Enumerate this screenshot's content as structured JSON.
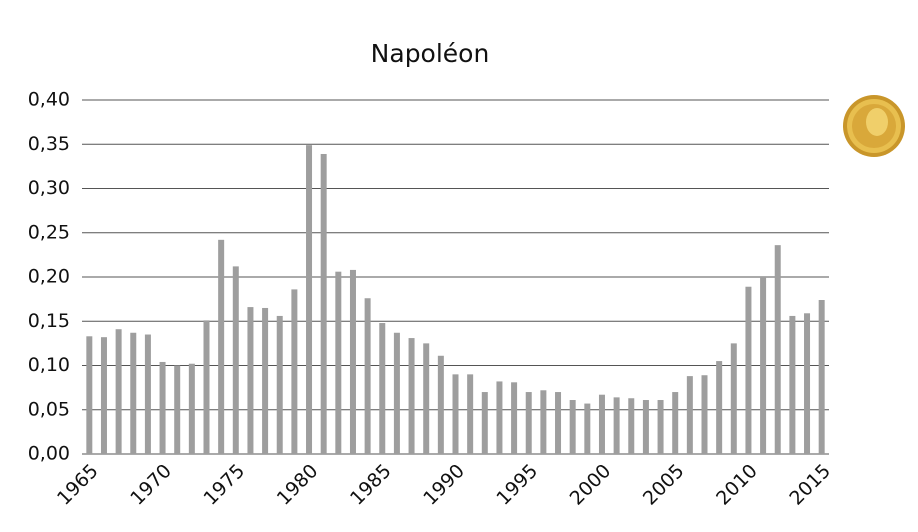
{
  "chart_data": {
    "type": "bar",
    "title": "Napoléon",
    "categories": [
      "1965",
      null,
      null,
      null,
      null,
      "1970",
      null,
      null,
      null,
      null,
      "1975",
      null,
      null,
      null,
      null,
      "1980",
      null,
      null,
      null,
      null,
      "1985",
      null,
      null,
      null,
      null,
      "1990",
      null,
      null,
      null,
      null,
      "1995",
      null,
      null,
      null,
      null,
      "2000",
      null,
      null,
      null,
      null,
      "2005",
      null,
      null,
      null,
      null,
      "2010",
      null,
      null,
      null,
      null,
      "2015"
    ],
    "values": [
      0.133,
      0.132,
      0.141,
      0.137,
      0.135,
      0.104,
      0.1,
      0.102,
      0.151,
      0.242,
      0.212,
      0.166,
      0.165,
      0.156,
      0.186,
      0.349,
      0.339,
      0.206,
      0.208,
      0.176,
      0.148,
      0.137,
      0.131,
      0.125,
      0.111,
      0.09,
      0.09,
      0.07,
      0.082,
      0.081,
      0.07,
      0.072,
      0.07,
      0.061,
      0.057,
      0.067,
      0.064,
      0.063,
      0.061,
      0.061,
      0.07,
      0.088,
      0.089,
      0.105,
      0.125,
      0.189,
      0.199,
      0.236,
      0.156,
      0.159,
      0.174
    ],
    "color": "#9e9e9e",
    "ylim": [
      0,
      0.4
    ],
    "yticks": [
      {
        "value": 0,
        "label": "0,00"
      },
      {
        "value": 0.05,
        "label": "0,05"
      },
      {
        "value": 0.1,
        "label": "0,10"
      },
      {
        "value": 0.15,
        "label": "0,15"
      },
      {
        "value": 0.2,
        "label": "0,20"
      },
      {
        "value": 0.25,
        "label": "0,25"
      },
      {
        "value": 0.3,
        "label": "0,30"
      },
      {
        "value": 0.35,
        "label": "0,35"
      },
      {
        "value": 0.4,
        "label": "0,40"
      }
    ],
    "grid": true
  }
}
